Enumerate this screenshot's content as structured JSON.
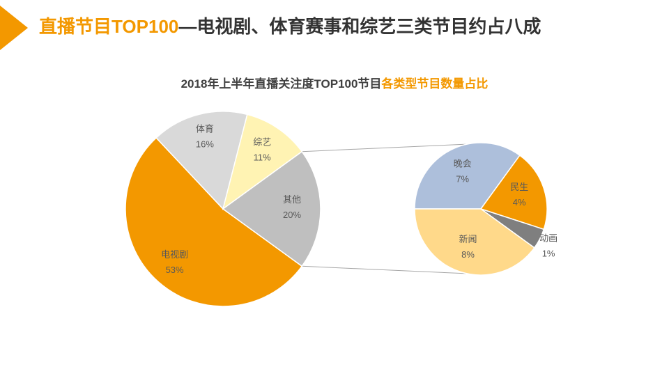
{
  "header": {
    "title_accent": "直播节目TOP100",
    "title_rest": "—电视剧、体育赛事和综艺三类节目约占八成"
  },
  "chart_subtitle": {
    "main": "2018年上半年直播关注度TOP100节目",
    "accent": "各类型节目数量占比"
  },
  "colors": {
    "accent": "#f39800",
    "title_text": "#333333",
    "connector": "#a6a6a6"
  },
  "chart_data": {
    "type": "pie",
    "title": "2018年上半年直播关注度TOP100节目各类型节目数量占比",
    "main_pie": [
      {
        "label": "电视剧",
        "value": 53,
        "display": "53%",
        "color": "#f39800"
      },
      {
        "label": "体育",
        "value": 16,
        "display": "16%",
        "color": "#d9d9d9"
      },
      {
        "label": "综艺",
        "value": 11,
        "display": "11%",
        "color": "#fff3b3"
      },
      {
        "label": "其他",
        "value": 20,
        "display": "20%",
        "color": "#bfbfbf"
      }
    ],
    "breakdown_of": "其他",
    "secondary_pie": [
      {
        "label": "晚会",
        "value": 7,
        "display": "7%",
        "color": "#adbfdb"
      },
      {
        "label": "民生",
        "value": 4,
        "display": "4%",
        "color": "#f39800"
      },
      {
        "label": "动画",
        "value": 1,
        "display": "1%",
        "color": "#7f7f7f"
      },
      {
        "label": "新闻",
        "value": 8,
        "display": "8%",
        "color": "#ffd98a"
      }
    ]
  }
}
